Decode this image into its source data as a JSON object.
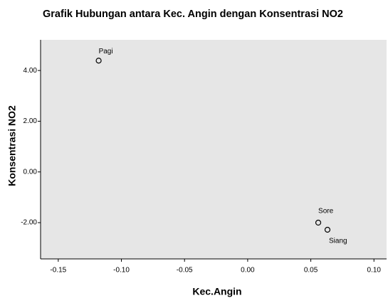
{
  "chart_data": {
    "type": "scatter",
    "title": "Grafik Hubungan antara Kec. Angin dengan Konsentrasi NO2",
    "xlabel": "Kec.Angin",
    "ylabel": "Konsentrasi NO2",
    "x": [
      -0.118,
      0.0559,
      0.0632
    ],
    "values": [
      4.39,
      -2.0,
      -2.28
    ],
    "point_labels": [
      "Pagi",
      "Sore",
      "Siang"
    ],
    "xlim": [
      -0.164,
      0.11
    ],
    "xticks": [
      -0.15,
      {
        "value": -0.1,
        "label": "-0.10"
      },
      -0.05,
      {
        "value": 0,
        "label": "0.00"
      },
      0.05,
      {
        "value": 0.1,
        "label": "0.10"
      }
    ],
    "ylim": [
      -3.43,
      5.21
    ],
    "yticks": [
      {
        "value": 4,
        "label": "4.00"
      },
      {
        "value": 2,
        "label": "2.00"
      },
      {
        "value": 0,
        "label": "0.00"
      },
      {
        "value": -2,
        "label": "-2.00"
      }
    ],
    "background": "#e6e6e6",
    "marker_color": "#000000"
  }
}
